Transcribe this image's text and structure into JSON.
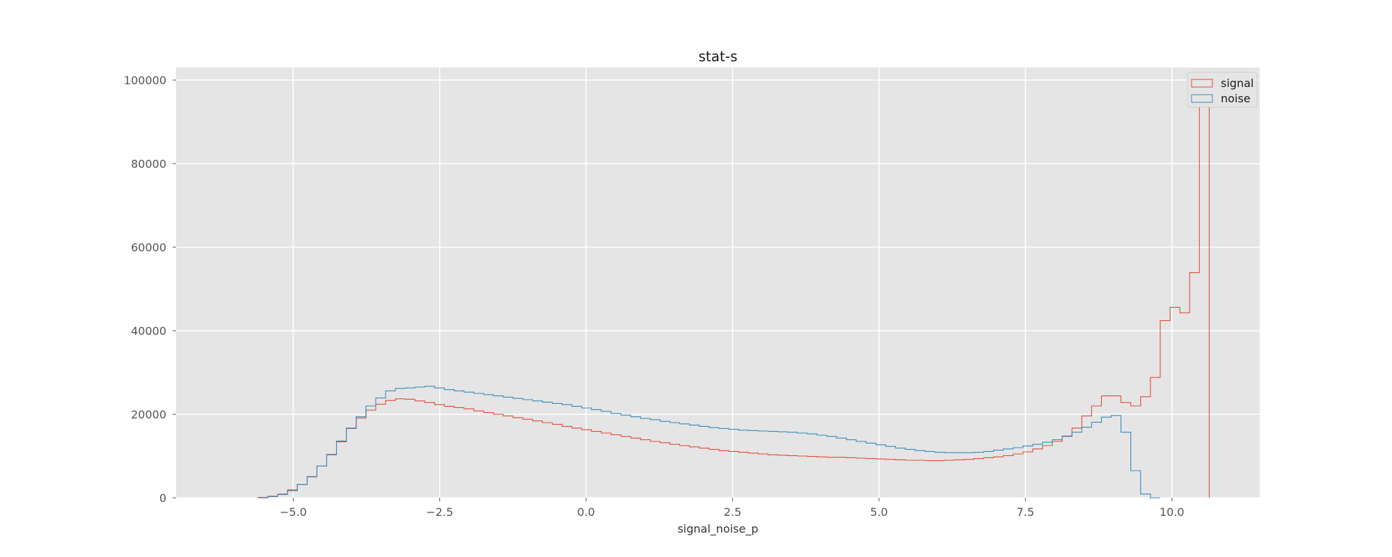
{
  "chart_data": {
    "type": "histogram",
    "title": "stat-s",
    "xlabel": "signal_noise_p",
    "ylabel": "",
    "xlim": [
      -7.0,
      11.5
    ],
    "ylim": [
      0,
      103000
    ],
    "xticks": [
      -5.0,
      -2.5,
      0.0,
      2.5,
      5.0,
      7.5,
      10.0
    ],
    "xtick_labels": [
      "−5.0",
      "−2.5",
      "0.0",
      "2.5",
      "5.0",
      "7.5",
      "10.0"
    ],
    "yticks": [
      0,
      20000,
      40000,
      60000,
      80000,
      100000
    ],
    "ytick_labels": [
      "0",
      "20000",
      "40000",
      "60000",
      "80000",
      "100000"
    ],
    "grid": true,
    "legend_position": "top-right",
    "bin_start": -5.6,
    "bin_width": 0.1674,
    "series": [
      {
        "name": "signal",
        "color": "#E24A33",
        "counts": [
          100,
          400,
          900,
          1900,
          3200,
          5000,
          7600,
          10300,
          13400,
          16600,
          19100,
          21000,
          22400,
          23300,
          23700,
          23600,
          23200,
          22800,
          22300,
          21900,
          21600,
          21300,
          20800,
          20400,
          20000,
          19600,
          19200,
          18800,
          18400,
          18000,
          17600,
          17100,
          16700,
          16300,
          15900,
          15500,
          15100,
          14700,
          14300,
          13900,
          13500,
          13200,
          12800,
          12500,
          12200,
          11900,
          11600,
          11300,
          11100,
          10900,
          10700,
          10500,
          10300,
          10200,
          10100,
          10000,
          9900,
          9800,
          9700,
          9700,
          9600,
          9500,
          9400,
          9300,
          9200,
          9100,
          9000,
          9000,
          8900,
          8900,
          9000,
          9100,
          9200,
          9400,
          9600,
          9800,
          10100,
          10500,
          11000,
          11700,
          12500,
          13500,
          14800,
          16700,
          19600,
          22000,
          24400,
          24400,
          22800,
          22000,
          24200,
          28800,
          42400,
          45600,
          44300,
          53900,
          101000
        ]
      },
      {
        "name": "noise",
        "color": "#348ABD",
        "counts": [
          0,
          300,
          800,
          1700,
          3200,
          5100,
          7600,
          10400,
          13600,
          16700,
          19400,
          22000,
          23900,
          25600,
          26200,
          26300,
          26500,
          26700,
          26300,
          25900,
          25600,
          25300,
          25000,
          24700,
          24400,
          24100,
          23800,
          23500,
          23200,
          22900,
          22600,
          22300,
          21900,
          21500,
          21100,
          20700,
          20200,
          19800,
          19400,
          19000,
          18700,
          18300,
          18000,
          17700,
          17400,
          17100,
          16800,
          16600,
          16400,
          16200,
          16100,
          16000,
          15900,
          15800,
          15700,
          15500,
          15300,
          15000,
          14700,
          14300,
          13900,
          13500,
          13100,
          12700,
          12300,
          11900,
          11600,
          11300,
          11100,
          10900,
          10800,
          10800,
          10800,
          10900,
          11100,
          11400,
          11700,
          12000,
          12400,
          12800,
          13300,
          13900,
          14700,
          15700,
          16900,
          18100,
          19300,
          19700,
          15700,
          6500,
          900,
          0
        ]
      }
    ]
  }
}
